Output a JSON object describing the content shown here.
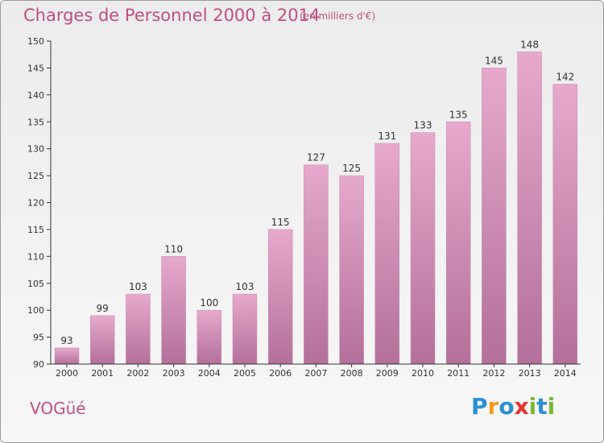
{
  "chart_data": {
    "type": "bar",
    "title": "Charges de Personnel 2000 à 2014",
    "subtitle": "(en milliers d'€)",
    "categories": [
      "2000",
      "2001",
      "2002",
      "2003",
      "2004",
      "2005",
      "2006",
      "2007",
      "2008",
      "2009",
      "2010",
      "2011",
      "2012",
      "2013",
      "2014"
    ],
    "values": [
      93,
      99,
      103,
      110,
      100,
      103,
      115,
      127,
      125,
      131,
      133,
      135,
      145,
      148,
      142
    ],
    "ylim": [
      90,
      150
    ],
    "yticks": [
      90,
      95,
      100,
      105,
      110,
      115,
      120,
      125,
      130,
      135,
      140,
      145,
      150
    ],
    "xlabel": "",
    "ylabel": "",
    "grid": false,
    "bar_color": "#d68cb6"
  },
  "footer": {
    "commune": "VOGüé",
    "brand_letters": [
      "P",
      "r",
      "o",
      "x",
      "i",
      "t",
      "i"
    ],
    "brand_colors": [
      "#2a8fd6",
      "#f39a1f",
      "#2a8fd6",
      "#e8322c",
      "#7ab82f",
      "#2a8fd6",
      "#7ab82f"
    ]
  },
  "colors": {
    "accent": "#c0507e",
    "axis": "#333333"
  }
}
